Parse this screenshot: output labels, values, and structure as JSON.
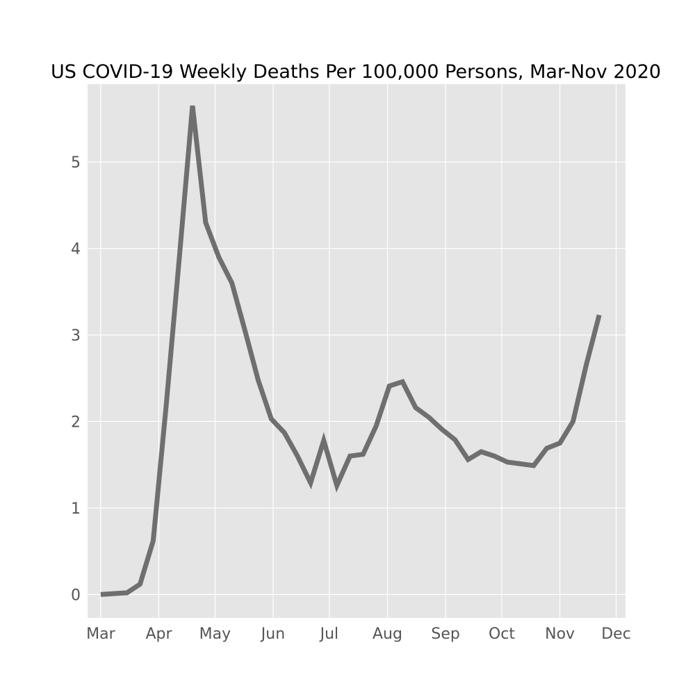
{
  "chart_data": {
    "type": "line",
    "title": "US COVID-19 Weekly Deaths Per 100,000 Persons, Mar-Nov 2020",
    "xlabel": "",
    "ylabel": "",
    "x_ticks": [
      {
        "label": "Mar",
        "date": "2020-03-01"
      },
      {
        "label": "Apr",
        "date": "2020-04-01"
      },
      {
        "label": "May",
        "date": "2020-05-01"
      },
      {
        "label": "Jun",
        "date": "2020-06-01"
      },
      {
        "label": "Jul",
        "date": "2020-07-01"
      },
      {
        "label": "Aug",
        "date": "2020-08-01"
      },
      {
        "label": "Sep",
        "date": "2020-09-01"
      },
      {
        "label": "Oct",
        "date": "2020-10-01"
      },
      {
        "label": "Nov",
        "date": "2020-11-01"
      },
      {
        "label": "Dec",
        "date": "2020-12-01"
      }
    ],
    "y_ticks": [
      0,
      1,
      2,
      3,
      4,
      5
    ],
    "xlim": [
      "2020-02-23",
      "2020-12-06"
    ],
    "ylim": [
      -0.27,
      5.9
    ],
    "grid": true,
    "colors": {
      "plot_background": "#e5e5e5",
      "grid": "#ffffff",
      "line": "#6f6f6f"
    },
    "series": [
      {
        "x": [
          "2020-03-01",
          "2020-03-08",
          "2020-03-15",
          "2020-03-22",
          "2020-03-29",
          "2020-04-05",
          "2020-04-12",
          "2020-04-19",
          "2020-04-26",
          "2020-05-03",
          "2020-05-10",
          "2020-05-17",
          "2020-05-24",
          "2020-05-31",
          "2020-06-07",
          "2020-06-14",
          "2020-06-21",
          "2020-06-28",
          "2020-07-05",
          "2020-07-12",
          "2020-07-19",
          "2020-07-26",
          "2020-08-02",
          "2020-08-09",
          "2020-08-16",
          "2020-08-23",
          "2020-08-30",
          "2020-09-06",
          "2020-09-13",
          "2020-09-20",
          "2020-09-27",
          "2020-10-04",
          "2020-10-11",
          "2020-10-18",
          "2020-10-25",
          "2020-11-01",
          "2020-11-08",
          "2020-11-15",
          "2020-11-22"
        ],
        "y": [
          0.0,
          0.01,
          0.02,
          0.12,
          0.62,
          2.2,
          3.9,
          5.65,
          4.3,
          3.9,
          3.6,
          3.05,
          2.48,
          2.03,
          1.87,
          1.6,
          1.29,
          1.78,
          1.26,
          1.6,
          1.62,
          1.95,
          2.41,
          2.46,
          2.16,
          2.05,
          1.91,
          1.79,
          1.56,
          1.65,
          1.6,
          1.53,
          1.51,
          1.49,
          1.69,
          1.75,
          2.0,
          2.65,
          3.23
        ]
      }
    ]
  }
}
